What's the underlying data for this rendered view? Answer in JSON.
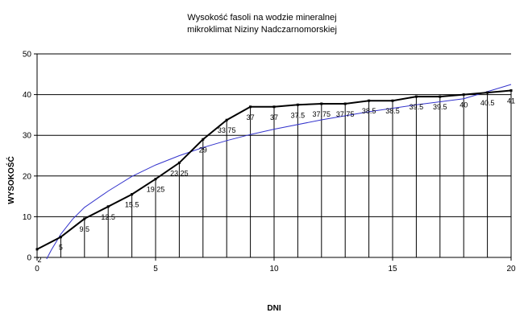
{
  "chart_data": {
    "type": "line",
    "title_line1": "Wysokość fasoli na wodzie mineralnej",
    "title_line2": "mikroklimat Niziny Nadczarnomorskiej",
    "xlabel": "DNI",
    "ylabel": "WYSOKOŚĆ",
    "xlim": [
      0,
      20
    ],
    "ylim": [
      0,
      50
    ],
    "x_ticks": [
      0,
      5,
      10,
      15,
      20
    ],
    "y_ticks": [
      0,
      10,
      20,
      30,
      40,
      50
    ],
    "grid": "horizontal",
    "series": [
      {
        "kind": "measured",
        "color": "#000000",
        "x": [
          0,
          1,
          2,
          3,
          4,
          5,
          6,
          7,
          8,
          9,
          10,
          11,
          12,
          13,
          14,
          15,
          16,
          17,
          18,
          19,
          20
        ],
        "values": [
          2,
          5,
          9.5,
          12.5,
          15.5,
          19.25,
          23.25,
          29,
          33.75,
          37,
          37,
          37.5,
          37.75,
          37.75,
          38.5,
          38.5,
          39.5,
          39.5,
          40,
          40.5,
          41
        ],
        "labels": [
          "2",
          "5",
          "9.5",
          "12.5",
          "15.5",
          "19.25",
          "23.25",
          "29",
          "33.75",
          "37",
          "37",
          "37.5",
          "37.75",
          "37.75",
          "38.5",
          "38.5",
          "39.5",
          "39.5",
          "40",
          "40.5",
          "41"
        ]
      },
      {
        "kind": "trendline",
        "color": "#3333cc",
        "x": [
          0.4,
          0.6,
          1,
          1.5,
          2,
          3,
          4,
          5,
          6,
          7,
          8,
          9,
          10,
          12,
          14,
          16,
          18,
          20
        ],
        "values": [
          -0.4,
          1.8,
          5.7,
          9.4,
          12.3,
          16.3,
          19.9,
          22.7,
          25.0,
          27.0,
          28.7,
          30.2,
          31.5,
          33.8,
          35.8,
          37.5,
          39.0,
          42.5
        ]
      }
    ]
  }
}
